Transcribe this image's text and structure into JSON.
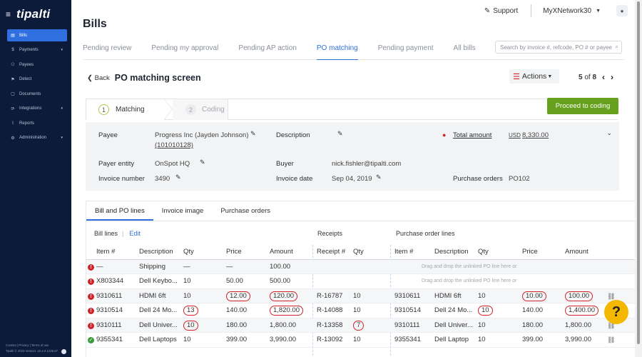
{
  "sidebar": {
    "logo": "tipalti",
    "items": [
      {
        "icon": "bills-icon",
        "glyph": "▤",
        "label": "Bills",
        "active": true,
        "caret": ""
      },
      {
        "icon": "payments-icon",
        "glyph": "$",
        "label": "Payments",
        "active": false,
        "caret": "▾"
      },
      {
        "icon": "payees-icon",
        "glyph": "⚇",
        "label": "Payees",
        "active": false,
        "caret": ""
      },
      {
        "icon": "detect-icon",
        "glyph": "⚑",
        "label": "Detect",
        "active": false,
        "caret": ""
      },
      {
        "icon": "documents-icon",
        "glyph": "▢",
        "label": "Documents",
        "active": false,
        "caret": ""
      },
      {
        "icon": "integrations-icon",
        "glyph": "⟳",
        "label": "Integrations",
        "active": false,
        "caret": "▾"
      },
      {
        "icon": "reports-icon",
        "glyph": "⌇",
        "label": "Reports",
        "active": false,
        "caret": ""
      },
      {
        "icon": "administration-icon",
        "glyph": "⚙",
        "label": "Administration",
        "active": false,
        "caret": "▾"
      }
    ],
    "footer_links": "Contact | Privacy | Terms of use",
    "footer_version": "Tipalti © 2023   Version: 22.4.0.1235.57"
  },
  "topbar": {
    "support": "Support",
    "account": "MyXNetwork30"
  },
  "page": {
    "title": "Bills",
    "tabs": [
      "Pending review",
      "Pending my approval",
      "Pending AP action",
      "PO matching",
      "Pending payment",
      "All bills"
    ],
    "active_tab": 3,
    "search_placeholder": "Search by invoice #, refcode, PO # or payee",
    "back": "Back",
    "screen_title": "PO matching screen",
    "actions": "Actions",
    "pager": {
      "current": "5",
      "of": "of",
      "total": "8"
    }
  },
  "steps": {
    "step1": {
      "num": "1",
      "label": "Matching"
    },
    "step2": {
      "num": "2",
      "label": "Coding"
    },
    "proceed": "Proceed to coding"
  },
  "details": {
    "payee_label": "Payee",
    "payee_value": "Progress Inc (Jayden Johnson)",
    "payee_id": "(101010128)",
    "description_label": "Description",
    "total_label": "Total amount",
    "total_currency": "USD",
    "total_value": "8,330.00",
    "payer_label": "Payer entity",
    "payer_value": "OnSpot HQ",
    "buyer_label": "Buyer",
    "buyer_value": "nick.fishler@tipalti.com",
    "invoice_number_label": "Invoice number",
    "invoice_number_value": "3490",
    "invoice_date_label": "Invoice date",
    "invoice_date_value": "Sep 04, 2019",
    "po_label": "Purchase orders",
    "po_value": "PO102"
  },
  "inner_tabs": [
    "Bill and PO lines",
    "Invoice image",
    "Purchase orders"
  ],
  "sections": {
    "bill_lines": "Bill lines",
    "edit": "Edit",
    "receipts": "Receipts",
    "po_lines": "Purchase order lines"
  },
  "table": {
    "headers": [
      "Item #",
      "Description",
      "Qty",
      "Price",
      "Amount",
      "Receipt #",
      "Qty",
      "Item #",
      "Description",
      "Qty",
      "Price",
      "Amount"
    ],
    "drop_hint": "Drag and drop the unlinked PO line here or",
    "rows": [
      {
        "status": "error",
        "item": "—",
        "desc": "Shipping",
        "qty": "—",
        "price": "—",
        "amount": "100.00",
        "receipt": "",
        "rqty": "",
        "po_item": "",
        "po_desc": "",
        "po_qty": "",
        "po_price": "",
        "po_amount": "",
        "hint": true
      },
      {
        "status": "error",
        "item": "X803344",
        "desc": "Dell Keybo...",
        "qty": "10",
        "price": "50.00",
        "amount": "500.00",
        "receipt": "",
        "rqty": "",
        "po_item": "",
        "po_desc": "",
        "po_qty": "",
        "po_price": "",
        "po_amount": "",
        "hint": true
      },
      {
        "status": "error",
        "item": "9310611",
        "desc": "HDMI 6ft",
        "qty": "10",
        "price": "12.00",
        "amount": "120.00",
        "receipt": "R-16787",
        "rqty": "10",
        "po_item": "9310611",
        "po_desc": "HDMI 6ft",
        "po_qty": "10",
        "po_price": "10.00",
        "po_amount": "100.00",
        "hint": false,
        "circle": [
          "price",
          "amount",
          "po_price",
          "po_amount"
        ]
      },
      {
        "status": "error",
        "item": "9310514",
        "desc": "Dell 24 Mo...",
        "qty": "13",
        "price": "140.00",
        "amount": "1,820.00",
        "receipt": "R-14088",
        "rqty": "10",
        "po_item": "9310514",
        "po_desc": "Dell 24 Mo...",
        "po_qty": "10",
        "po_price": "140.00",
        "po_amount": "1,400.00",
        "hint": false,
        "circle": [
          "qty",
          "amount",
          "po_qty",
          "po_amount"
        ]
      },
      {
        "status": "error",
        "item": "9310111",
        "desc": "Dell Univer...",
        "qty": "10",
        "price": "180.00",
        "amount": "1,800.00",
        "receipt": "R-13358",
        "rqty": "7",
        "po_item": "9310111",
        "po_desc": "Dell Univer...",
        "po_qty": "10",
        "po_price": "180.00",
        "po_amount": "1,800.00",
        "hint": false,
        "circle": [
          "qty",
          "rqty"
        ]
      },
      {
        "status": "ok",
        "item": "9355341",
        "desc": "Dell Laptops",
        "qty": "10",
        "price": "399.00",
        "amount": "3,990.00",
        "receipt": "R-13092",
        "rqty": "10",
        "po_item": "9355341",
        "po_desc": "Dell Laptop",
        "po_qty": "10",
        "po_price": "399.00",
        "po_amount": "3,990.00",
        "hint": false
      }
    ]
  },
  "colors": {
    "primary": "#2f6fe0",
    "sidebar": "#0c1b3a",
    "proceed": "#66a01d",
    "error": "#d0242a",
    "help": "#f5b800"
  }
}
